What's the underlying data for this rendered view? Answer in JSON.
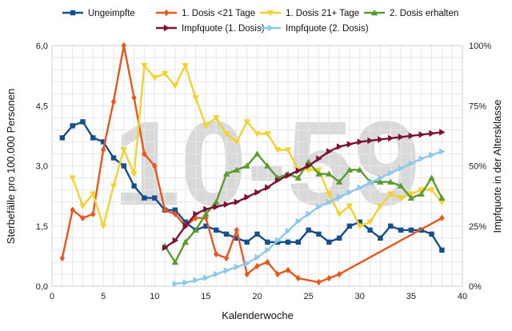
{
  "chart_data": {
    "type": "line",
    "xlabel": "Kalenderwoche",
    "ylabel_left": "Sterbefälle pro 100.000 Personen",
    "ylabel_right": "Impfquote in der Altersklasse",
    "watermark": "10-59",
    "xlim": [
      0,
      40
    ],
    "ylim_left": [
      0,
      6
    ],
    "ylim_right": [
      0,
      100
    ],
    "x_ticks": [
      0,
      5,
      10,
      15,
      20,
      25,
      30,
      35,
      40
    ],
    "y_ticks_left": [
      {
        "value": 0,
        "label": "0,0"
      },
      {
        "value": 1.5,
        "label": "1,5"
      },
      {
        "value": 3,
        "label": "3,0"
      },
      {
        "value": 4.5,
        "label": "4,5"
      },
      {
        "value": 6,
        "label": "6,0"
      }
    ],
    "y_ticks_right": [
      {
        "value": 0,
        "label": "0%"
      },
      {
        "value": 25,
        "label": "25%"
      },
      {
        "value": 50,
        "label": "50%"
      },
      {
        "value": 75,
        "label": "75%"
      },
      {
        "value": 100,
        "label": "100%"
      }
    ],
    "grid": true,
    "legend_position": "top",
    "series": [
      {
        "name": "Ungeimpfte",
        "axis": "left",
        "color": "#174f8c",
        "marker": "square",
        "points": [
          [
            1,
            3.7
          ],
          [
            2,
            4.0
          ],
          [
            3,
            4.1
          ],
          [
            4,
            3.7
          ],
          [
            5,
            3.6
          ],
          [
            6,
            3.2
          ],
          [
            7,
            3.0
          ],
          [
            8,
            2.5
          ],
          [
            9,
            2.2
          ],
          [
            10,
            2.2
          ],
          [
            11,
            1.9
          ],
          [
            12,
            1.9
          ],
          [
            13,
            1.6
          ],
          [
            14,
            1.4
          ],
          [
            15,
            1.5
          ],
          [
            16,
            1.4
          ],
          [
            17,
            1.3
          ],
          [
            18,
            1.2
          ],
          [
            19,
            1.1
          ],
          [
            20,
            1.3
          ],
          [
            21,
            1.1
          ],
          [
            22,
            1.1
          ],
          [
            23,
            1.1
          ],
          [
            24,
            1.1
          ],
          [
            25,
            1.4
          ],
          [
            26,
            1.3
          ],
          [
            27,
            1.1
          ],
          [
            28,
            1.2
          ],
          [
            29,
            1.5
          ],
          [
            30,
            1.6
          ],
          [
            31,
            1.4
          ],
          [
            32,
            1.2
          ],
          [
            33,
            1.5
          ],
          [
            34,
            1.4
          ],
          [
            35,
            1.4
          ],
          [
            36,
            1.4
          ],
          [
            37,
            1.3
          ],
          [
            38,
            0.9
          ]
        ]
      },
      {
        "name": "1. Dosis <21 Tage",
        "axis": "left",
        "color": "#e8561c",
        "marker": "diamond",
        "points": [
          [
            1,
            0.7
          ],
          [
            2,
            1.9
          ],
          [
            3,
            1.7
          ],
          [
            4,
            1.8
          ],
          [
            5,
            3.4
          ],
          [
            6,
            4.6
          ],
          [
            7,
            6.0
          ],
          [
            8,
            4.7
          ],
          [
            9,
            3.3
          ],
          [
            10,
            3.0
          ],
          [
            11,
            1.9
          ],
          [
            12,
            1.8
          ],
          [
            13,
            1.5
          ],
          [
            14,
            1.7
          ],
          [
            15,
            1.7
          ],
          [
            16,
            0.8
          ],
          [
            17,
            0.7
          ],
          [
            18,
            1.4
          ],
          [
            19,
            0.3
          ],
          [
            20,
            0.5
          ],
          [
            21,
            0.6
          ],
          [
            22,
            0.3
          ],
          [
            23,
            0.4
          ],
          [
            24,
            0.2
          ],
          [
            26,
            0.1
          ],
          [
            27,
            0.2
          ],
          [
            28,
            0.3
          ],
          [
            38,
            1.7
          ]
        ]
      },
      {
        "name": "1. Dosis 21+ Tage",
        "axis": "left",
        "color": "#f2d230",
        "marker": "triangle-down",
        "points": [
          [
            2,
            2.7
          ],
          [
            3,
            2.0
          ],
          [
            4,
            2.3
          ],
          [
            5,
            1.5
          ],
          [
            6,
            2.5
          ],
          [
            7,
            3.4
          ],
          [
            8,
            2.8
          ],
          [
            9,
            5.5
          ],
          [
            10,
            5.2
          ],
          [
            11,
            5.3
          ],
          [
            12,
            5.0
          ],
          [
            13,
            5.5
          ],
          [
            14,
            4.7
          ],
          [
            15,
            4.0
          ],
          [
            16,
            4.2
          ],
          [
            17,
            3.8
          ],
          [
            18,
            3.6
          ],
          [
            19,
            4.1
          ],
          [
            20,
            3.8
          ],
          [
            21,
            3.8
          ],
          [
            22,
            3.4
          ],
          [
            23,
            3.4
          ],
          [
            24,
            2.9
          ],
          [
            25,
            2.9
          ],
          [
            26,
            2.9
          ],
          [
            27,
            2.3
          ],
          [
            28,
            1.8
          ],
          [
            29,
            2.0
          ],
          [
            30,
            1.5
          ],
          [
            31,
            1.6
          ],
          [
            32,
            2.0
          ],
          [
            33,
            2.3
          ],
          [
            34,
            2.2
          ],
          [
            35,
            2.3
          ],
          [
            36,
            2.4
          ],
          [
            37,
            2.4
          ],
          [
            38,
            2.1
          ]
        ]
      },
      {
        "name": "2. Dosis erhalten",
        "axis": "left",
        "color": "#5a9a2e",
        "marker": "triangle-up",
        "points": [
          [
            11,
            1.0
          ],
          [
            12,
            0.6
          ],
          [
            13,
            1.1
          ],
          [
            14,
            1.4
          ],
          [
            15,
            1.8
          ],
          [
            16,
            2.1
          ],
          [
            17,
            2.8
          ],
          [
            18,
            2.9
          ],
          [
            19,
            3.0
          ],
          [
            20,
            3.3
          ],
          [
            21,
            3.0
          ],
          [
            22,
            2.7
          ],
          [
            23,
            2.8
          ],
          [
            24,
            2.7
          ],
          [
            25,
            3.1
          ],
          [
            26,
            2.8
          ],
          [
            27,
            2.8
          ],
          [
            28,
            2.6
          ],
          [
            29,
            2.9
          ],
          [
            30,
            2.9
          ],
          [
            31,
            2.6
          ],
          [
            32,
            2.6
          ],
          [
            33,
            2.6
          ],
          [
            34,
            2.5
          ],
          [
            35,
            2.2
          ],
          [
            36,
            2.3
          ],
          [
            37,
            2.7
          ],
          [
            38,
            2.2
          ]
        ]
      },
      {
        "name": "Impfquote (1. Dosis)",
        "axis": "right",
        "color": "#7a1238",
        "marker": "triangle-right",
        "points": [
          [
            11,
            16
          ],
          [
            12,
            19
          ],
          [
            13,
            25
          ],
          [
            14,
            30
          ],
          [
            15,
            32
          ],
          [
            16,
            33
          ],
          [
            17,
            34
          ],
          [
            18,
            35
          ],
          [
            19,
            37
          ],
          [
            20,
            39
          ],
          [
            21,
            41
          ],
          [
            22,
            44
          ],
          [
            23,
            46
          ],
          [
            24,
            48
          ],
          [
            25,
            50
          ],
          [
            26,
            53
          ],
          [
            27,
            56
          ],
          [
            28,
            58
          ],
          [
            29,
            59
          ],
          [
            30,
            60
          ],
          [
            31,
            60.5
          ],
          [
            32,
            61
          ],
          [
            33,
            61.5
          ],
          [
            34,
            62
          ],
          [
            35,
            62.5
          ],
          [
            36,
            63
          ],
          [
            37,
            63.5
          ],
          [
            38,
            64
          ]
        ]
      },
      {
        "name": "Impfquote (2. Dosis)",
        "axis": "right",
        "color": "#8ec9ec",
        "marker": "triangle-right",
        "points": [
          [
            12,
            1
          ],
          [
            13,
            1.5
          ],
          [
            14,
            2.5
          ],
          [
            15,
            3.5
          ],
          [
            16,
            5
          ],
          [
            17,
            6.5
          ],
          [
            18,
            8
          ],
          [
            19,
            9.5
          ],
          [
            20,
            12
          ],
          [
            21,
            15
          ],
          [
            22,
            19
          ],
          [
            23,
            23
          ],
          [
            24,
            27
          ],
          [
            25,
            30
          ],
          [
            26,
            33
          ],
          [
            27,
            35
          ],
          [
            28,
            37
          ],
          [
            29,
            39
          ],
          [
            30,
            41
          ],
          [
            31,
            43
          ],
          [
            32,
            45
          ],
          [
            33,
            47
          ],
          [
            34,
            49
          ],
          [
            35,
            51
          ],
          [
            36,
            53
          ],
          [
            37,
            54.5
          ],
          [
            38,
            56
          ]
        ]
      }
    ]
  }
}
